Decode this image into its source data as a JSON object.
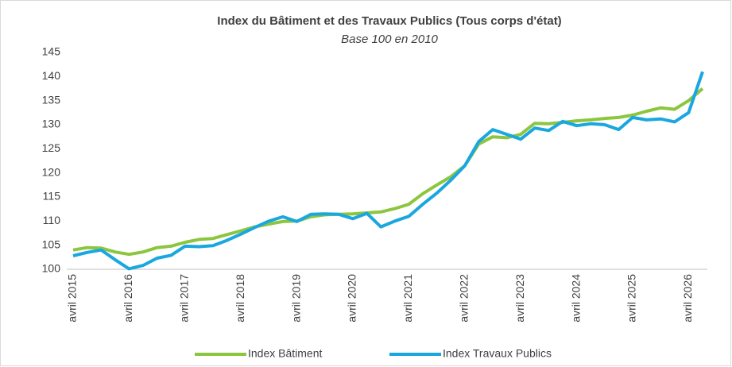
{
  "chart_data": {
    "type": "line",
    "title": "Index du Bâtiment et des Travaux Publics (Tous corps d'état)",
    "subtitle": "Base 100  en 2010",
    "categories": [
      "avril 2015",
      null,
      null,
      null,
      "avril 2016",
      null,
      null,
      null,
      "avril 2017",
      null,
      null,
      null,
      "avril 2018",
      null,
      null,
      null,
      "avril 2019",
      null,
      null,
      null,
      "avril 2020",
      null,
      null,
      null,
      "avril 2021",
      null,
      null,
      null,
      "avril 2022",
      null,
      null,
      null,
      "avril 2023",
      null,
      null,
      null,
      "avril 2024",
      null,
      null,
      null,
      "avril 2025",
      null,
      null,
      null,
      "avril 2026",
      null
    ],
    "series": [
      {
        "name": "Index Bâtiment",
        "color": "#8cc63f",
        "values": [
          104.0,
          104.5,
          104.4,
          103.6,
          103.1,
          103.6,
          104.5,
          104.8,
          105.6,
          106.2,
          106.4,
          107.2,
          108.0,
          108.8,
          109.4,
          109.9,
          110.0,
          110.9,
          111.3,
          111.4,
          111.5,
          111.7,
          111.9,
          112.6,
          113.5,
          115.7,
          117.5,
          119.2,
          121.5,
          126.0,
          127.5,
          127.3,
          128.0,
          130.3,
          130.2,
          130.5,
          130.8,
          131.0,
          131.3,
          131.5,
          132.0,
          132.8,
          133.5,
          133.2,
          135.0,
          137.5
        ]
      },
      {
        "name": "Index Travaux Publics",
        "color": "#1aa7e0",
        "values": [
          102.8,
          103.5,
          104.0,
          102.0,
          100.1,
          100.8,
          102.3,
          102.9,
          104.8,
          104.7,
          104.9,
          106.0,
          107.3,
          108.7,
          110.0,
          110.9,
          109.9,
          111.4,
          111.5,
          111.4,
          110.5,
          111.6,
          108.8,
          110.0,
          111.0,
          113.5,
          115.8,
          118.5,
          121.5,
          126.5,
          129.0,
          128.0,
          127.0,
          129.3,
          128.8,
          130.7,
          129.8,
          130.2,
          130.0,
          129.0,
          131.5,
          131.0,
          131.2,
          130.6,
          132.5,
          141.0
        ]
      }
    ],
    "ylim": [
      100,
      145
    ],
    "yticks": [
      100,
      105,
      110,
      115,
      120,
      125,
      130,
      135,
      140,
      145
    ],
    "legend": "bottom"
  }
}
